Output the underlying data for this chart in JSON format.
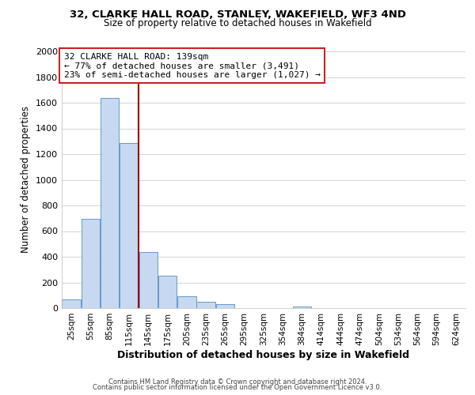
{
  "title1": "32, CLARKE HALL ROAD, STANLEY, WAKEFIELD, WF3 4ND",
  "title2": "Size of property relative to detached houses in Wakefield",
  "xlabel": "Distribution of detached houses by size in Wakefield",
  "ylabel": "Number of detached properties",
  "bar_labels": [
    "25sqm",
    "55sqm",
    "85sqm",
    "115sqm",
    "145sqm",
    "175sqm",
    "205sqm",
    "235sqm",
    "265sqm",
    "295sqm",
    "325sqm",
    "354sqm",
    "384sqm",
    "414sqm",
    "444sqm",
    "474sqm",
    "504sqm",
    "534sqm",
    "564sqm",
    "594sqm",
    "624sqm"
  ],
  "bar_values": [
    65,
    695,
    1635,
    1285,
    435,
    250,
    90,
    52,
    28,
    0,
    0,
    0,
    15,
    0,
    0,
    0,
    0,
    0,
    0,
    0,
    0
  ],
  "bar_color": "#c6d9f0",
  "bar_edge_color": "#6699cc",
  "vline_color": "#990000",
  "annotation_line1": "32 CLARKE HALL ROAD: 139sqm",
  "annotation_line2": "← 77% of detached houses are smaller (3,491)",
  "annotation_line3": "23% of semi-detached houses are larger (1,027) →",
  "annotation_box_color": "#ffffff",
  "annotation_box_edge": "#cc2222",
  "ylim": [
    0,
    2000
  ],
  "yticks": [
    0,
    200,
    400,
    600,
    800,
    1000,
    1200,
    1400,
    1600,
    1800,
    2000
  ],
  "footer1": "Contains HM Land Registry data © Crown copyright and database right 2024.",
  "footer2": "Contains public sector information licensed under the Open Government Licence v3.0.",
  "bg_color": "#ffffff",
  "grid_color": "#cccccc",
  "vline_index": 3.5
}
